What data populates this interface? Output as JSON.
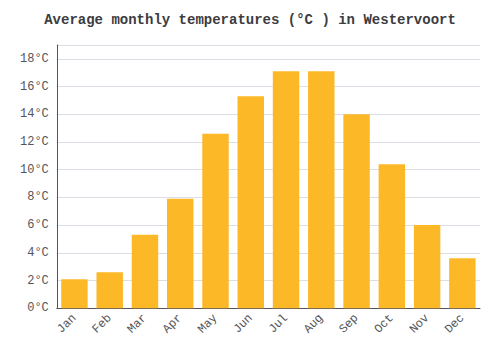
{
  "chart_data": {
    "type": "bar",
    "title": "Average monthly temperatures (°C ) in Westervoort",
    "categories": [
      "Jan",
      "Feb",
      "Mar",
      "Apr",
      "May",
      "Jun",
      "Jul",
      "Aug",
      "Sep",
      "Oct",
      "Nov",
      "Dec"
    ],
    "values": [
      2.1,
      2.6,
      5.3,
      7.9,
      12.6,
      15.3,
      17.1,
      17.1,
      14.0,
      10.4,
      6.0,
      3.6
    ],
    "color": "#FDB827",
    "ylim": [
      0,
      19
    ],
    "yticks": [
      {
        "value": 0,
        "label": "0°C"
      },
      {
        "value": 2,
        "label": "2°C"
      },
      {
        "value": 4,
        "label": "4°C"
      },
      {
        "value": 6,
        "label": "6°C"
      },
      {
        "value": 8,
        "label": "8°C"
      },
      {
        "value": 10,
        "label": "10°C"
      },
      {
        "value": 12,
        "label": "12°C"
      },
      {
        "value": 14,
        "label": "14°C"
      },
      {
        "value": 16,
        "label": "16°C"
      },
      {
        "value": 18,
        "label": "18°C"
      }
    ],
    "grid": true
  }
}
